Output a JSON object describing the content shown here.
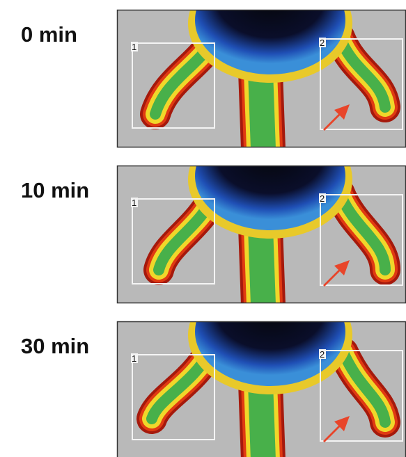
{
  "panels": [
    {
      "time": "0 min",
      "rois": [
        "1",
        "2"
      ]
    },
    {
      "time": "10 min",
      "rois": [
        "1",
        "2"
      ]
    },
    {
      "time": "30 min",
      "rois": [
        "1",
        "2"
      ]
    }
  ]
}
